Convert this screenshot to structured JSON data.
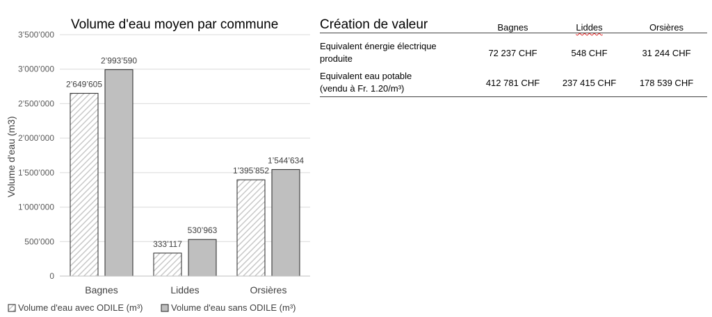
{
  "chart_data": {
    "type": "bar",
    "title": "Volume d'eau moyen par commune",
    "xlabel": "",
    "ylabel": "Volume  d'eau (m3)",
    "categories": [
      "Bagnes",
      "Liddes",
      "Orsières"
    ],
    "series": [
      {
        "name": "Volume d'eau avec ODILE (m³)",
        "values": [
          2649605,
          333117,
          1395852
        ],
        "labels": [
          "2’649’605",
          "333’117",
          "1’395’852"
        ],
        "pattern": "diagonal-hatch"
      },
      {
        "name": "Volume d'eau sans ODILE (m³)",
        "values": [
          2993590,
          530963,
          1544634
        ],
        "labels": [
          "2’993’590",
          "530’963",
          "1’544’634"
        ],
        "pattern": "solid"
      }
    ],
    "ylim": [
      0,
      3500000
    ],
    "yticks": [
      0,
      500000,
      1000000,
      1500000,
      2000000,
      2500000,
      3000000,
      3500000
    ],
    "ytick_labels": [
      "0",
      "500’000",
      "1’000’000",
      "1’500’000",
      "2’000’000",
      "2’500’000",
      "3’000’000",
      "3’500’000"
    ],
    "grid": true,
    "legend_position": "bottom",
    "colors": {
      "bar_fill": "#bfbfbf",
      "hatch": "#c8c8c8",
      "bar_stroke": "#262626",
      "grid": "#d9d9d9"
    }
  },
  "table": {
    "title": "Création de valeur",
    "columns": [
      "Bagnes",
      "Liddes",
      "Orsières"
    ],
    "rows": [
      {
        "label_line1": "Equivalent énergie électrique",
        "label_line2": "produite",
        "values": [
          "72 237 CHF",
          "548 CHF",
          "31 244 CHF"
        ]
      },
      {
        "label_line1": "Equivalent eau potable",
        "label_line2": "(vendu à Fr. 1.20/m³)",
        "values": [
          "412 781 CHF",
          "237 415 CHF",
          "178 539 CHF"
        ]
      }
    ]
  }
}
